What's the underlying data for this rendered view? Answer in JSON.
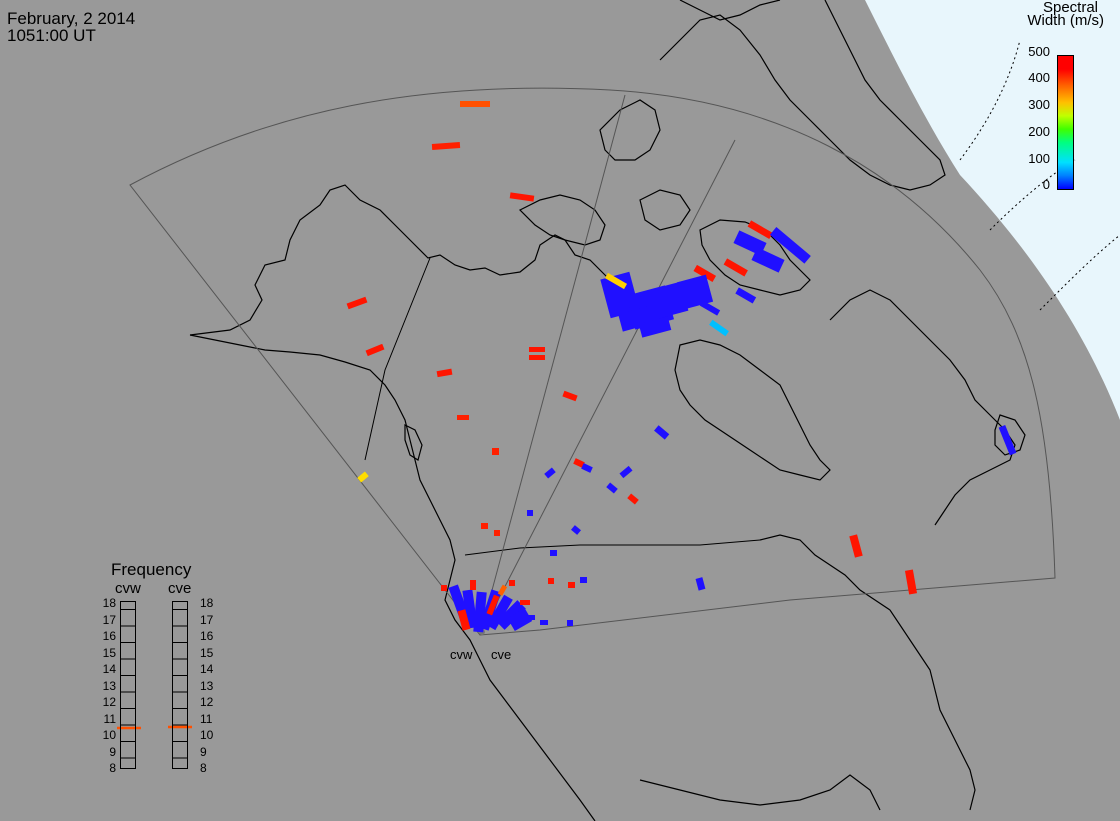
{
  "header": {
    "date": "February, 2 2014",
    "time": "1051:00 UT"
  },
  "colorbar": {
    "title_line1": "Spectral",
    "title_line2": "Width (m/s)",
    "ticks": [
      "500",
      "400",
      "300",
      "200",
      "100",
      "0"
    ],
    "colors": {
      "low": "#0000ff",
      "mid_low": "#00e0ff",
      "mid": "#40ff00",
      "mid_high": "#ffc000",
      "high": "#ff0000"
    }
  },
  "frequency_panel": {
    "title": "Frequency",
    "columns": [
      {
        "label": "cvw",
        "value_mhz": 10.5,
        "marker_color": "#ff5000"
      },
      {
        "label": "cve",
        "value_mhz": 10.6,
        "marker_color": "#ff5000"
      }
    ],
    "scale_labels": [
      "18",
      "17",
      "16",
      "15",
      "14",
      "13",
      "12",
      "11",
      "10",
      "9",
      "8"
    ]
  },
  "radar_sites": [
    {
      "label": "cvw"
    },
    {
      "label": "cve"
    }
  ],
  "map": {
    "background_color": "#999999",
    "daylight_color": "#e8f6fc",
    "coast_color": "#000000",
    "fov_color": "#555555"
  }
}
